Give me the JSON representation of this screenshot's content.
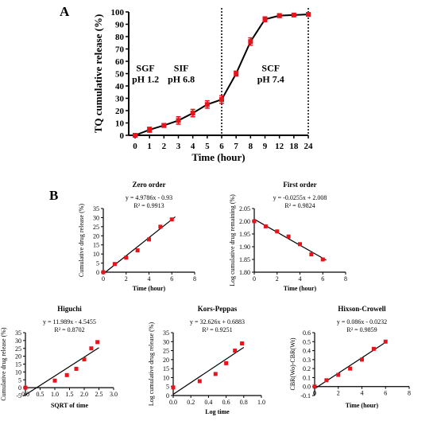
{
  "panel_labels": {
    "a": "A",
    "b": "B"
  },
  "colors": {
    "marker": "#e8141b",
    "line": "#000000",
    "axis": "#000000"
  },
  "chart_data": [
    {
      "id": "A",
      "type": "line",
      "title": "",
      "xlabel": "Time (hour)",
      "ylabel": "TQ cumulative release (%)",
      "categories": [
        "0",
        "1",
        "2",
        "3",
        "4",
        "5",
        "6",
        "7",
        "8",
        "9",
        "12",
        "18",
        "24"
      ],
      "values": [
        0,
        4.5,
        8,
        12,
        18,
        25,
        29,
        50,
        76,
        94,
        97,
        97.5,
        98
      ],
      "errors": [
        1,
        2,
        1.5,
        3,
        3,
        3,
        3,
        2,
        3,
        2,
        1.5,
        1,
        1
      ],
      "ylim": [
        0,
        100
      ],
      "yticks": [
        "0",
        "10",
        "20",
        "30",
        "40",
        "50",
        "60",
        "70",
        "80",
        "90",
        "100"
      ],
      "regions": [
        {
          "name": "SGF",
          "ph": "pH 1.2"
        },
        {
          "name": "SIF",
          "ph": "pH 6.8"
        },
        {
          "name": "SCF",
          "ph": "pH 7.4"
        }
      ]
    },
    {
      "id": "zero",
      "type": "scatter",
      "title": "Zero order",
      "equation": "y = 4.9786x - 0.93",
      "r2": "R² = 0.9913",
      "xlabel": "Time (hour)",
      "ylabel": "Cumulative drug release (%)",
      "x": [
        0,
        1,
        2,
        3,
        4,
        5,
        6
      ],
      "y": [
        0,
        4.5,
        8,
        12,
        18,
        25,
        29
      ],
      "fit": {
        "slope": 4.9786,
        "intercept": -0.93,
        "x_range": [
          0,
          6.3
        ]
      },
      "xlim": [
        0,
        8
      ],
      "ylim": [
        0,
        35
      ],
      "xticks": [
        "0",
        "2",
        "4",
        "6",
        "8"
      ],
      "yticks": [
        "0",
        "5",
        "10",
        "15",
        "20",
        "25",
        "30",
        "35"
      ]
    },
    {
      "id": "first",
      "type": "scatter",
      "title": "First order",
      "equation": "y = -0.0255x + 2.008",
      "r2": "R² = 0.9824",
      "xlabel": "Time (hour)",
      "ylabel": "Log cumulative drug remaining (%)",
      "x": [
        0,
        1,
        2,
        3,
        4,
        5,
        6
      ],
      "y": [
        2.0,
        1.98,
        1.96,
        1.94,
        1.91,
        1.87,
        1.85
      ],
      "fit": {
        "slope": -0.0255,
        "intercept": 2.008,
        "x_range": [
          0,
          6.3
        ]
      },
      "xlim": [
        0,
        8
      ],
      "ylim": [
        1.8,
        2.05
      ],
      "xticks": [
        "0",
        "2",
        "4",
        "6",
        "8"
      ],
      "yticks": [
        "1.80",
        "1.85",
        "1.90",
        "1.95",
        "2.00",
        "2.05"
      ]
    },
    {
      "id": "higuchi",
      "type": "scatter",
      "title": "Higuchi",
      "equation": "y = 11.989x - 4.5455",
      "r2": "R² = 0.8702",
      "xlabel": "SQRT of time",
      "ylabel": "Cumulative drug release (%)",
      "x": [
        0,
        1,
        1.41,
        1.73,
        2,
        2.24,
        2.45
      ],
      "y": [
        0,
        4.5,
        8,
        12,
        18,
        25,
        29
      ],
      "fit": {
        "slope": 11.989,
        "intercept": -4.5455,
        "x_range": [
          0,
          2.5
        ]
      },
      "xlim": [
        0,
        3
      ],
      "ylim": [
        -5,
        35
      ],
      "xticks": [
        "0.0",
        "0.5",
        "1.0",
        "1.5",
        "2.0",
        "2.5",
        "3.0"
      ],
      "yticks": [
        "-5",
        "0",
        "5",
        "10",
        "15",
        "20",
        "25",
        "30",
        "35"
      ]
    },
    {
      "id": "korsmeyer",
      "type": "scatter",
      "title": "Kors-Peppas",
      "equation": "y = 32.626x + 0.6883",
      "r2": "R² = 0.9251",
      "xlabel": "Log time",
      "ylabel": "Log cumulative drug release (%)",
      "x": [
        0,
        0.3,
        0.48,
        0.6,
        0.7,
        0.78
      ],
      "y": [
        4.5,
        8,
        12,
        18,
        25,
        29
      ],
      "fit": {
        "slope": 32.626,
        "intercept": 0.6883,
        "x_range": [
          0,
          0.8
        ]
      },
      "xlim": [
        0,
        1
      ],
      "ylim": [
        0,
        35
      ],
      "xticks": [
        "0.0",
        "0.2",
        "0.4",
        "0.6",
        "0.8",
        "1.0"
      ],
      "yticks": [
        "0",
        "5",
        "10",
        "15",
        "20",
        "25",
        "30",
        "35"
      ]
    },
    {
      "id": "hixson",
      "type": "scatter",
      "title": "Hixson-Crowell",
      "equation": "y = 0.086x - 0.0232",
      "r2": "R² = 0.9859",
      "xlabel": "Time (hour)",
      "ylabel": "CBR(Wo)-CBR(Wt)",
      "x": [
        0,
        1,
        2,
        3,
        4,
        5,
        6
      ],
      "y": [
        0,
        0.07,
        0.13,
        0.2,
        0.3,
        0.42,
        0.5
      ],
      "fit": {
        "slope": 0.086,
        "intercept": -0.0232,
        "x_range": [
          0,
          6
        ]
      },
      "xlim": [
        0,
        8
      ],
      "ylim": [
        -0.1,
        0.6
      ],
      "xticks": [
        "0",
        "2",
        "4",
        "6",
        "8"
      ],
      "yticks": [
        "-0.1",
        "0.0",
        "0.1",
        "0.2",
        "0.3",
        "0.4",
        "0.5",
        "0.6"
      ]
    }
  ]
}
